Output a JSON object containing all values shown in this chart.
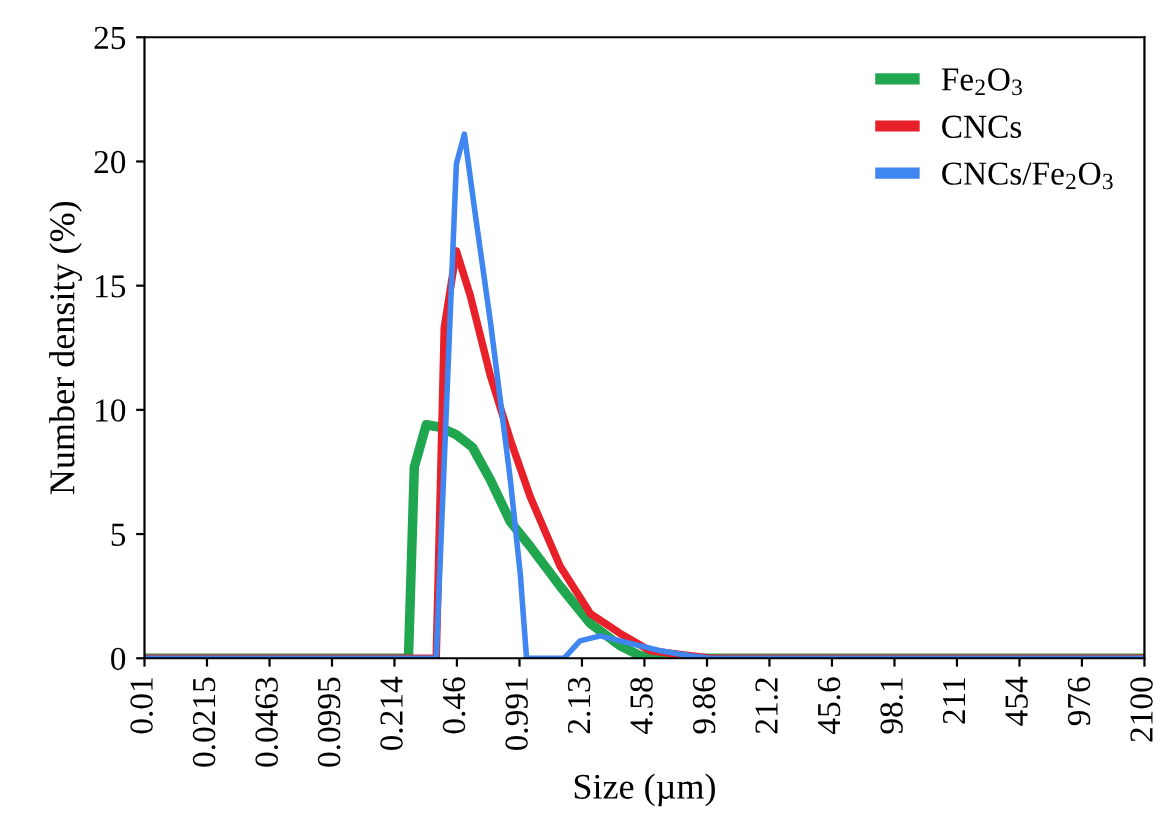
{
  "chart_data": {
    "type": "line",
    "xlabel": "Size (µm)",
    "ylabel": "Number density (%)",
    "log": "x",
    "xlim": [
      0.01,
      2100
    ],
    "xticks": [
      0.01,
      0.0215,
      0.0463,
      0.0995,
      0.214,
      0.46,
      0.991,
      2.13,
      4.58,
      9.86,
      21.2,
      45.6,
      98.1,
      211,
      454,
      976,
      2100
    ],
    "ylim": [
      0,
      25
    ],
    "yticks": [
      0,
      5,
      10,
      15,
      20,
      25
    ],
    "grid": false,
    "legend": "top right",
    "line_style": "solid",
    "marker": "none",
    "series": [
      {
        "name": "Fe$_{2}$O$_{3}$",
        "color": "#1fa64f",
        "x": [
          0.01,
          0.254,
          0.273,
          0.316,
          0.375,
          0.457,
          0.556,
          0.692,
          0.885,
          1.13,
          1.63,
          2.36,
          3.4,
          4.35,
          5.56,
          2100
        ],
        "values": [
          0,
          0,
          7.7,
          9.4,
          9.3,
          9.0,
          8.5,
          7.2,
          5.5,
          4.5,
          2.9,
          1.4,
          0.5,
          0.1,
          0,
          0
        ]
      },
      {
        "name": "CNCs",
        "color": "#e8202a",
        "x": [
          0.01,
          0.357,
          0.394,
          0.457,
          0.542,
          0.692,
          0.885,
          1.13,
          1.63,
          2.36,
          3.4,
          4.91,
          8.02,
          10.3,
          2100
        ],
        "values": [
          0,
          0,
          13.3,
          16.4,
          14.6,
          11.4,
          8.8,
          6.5,
          3.7,
          1.8,
          1.0,
          0.3,
          0.1,
          0,
          0
        ]
      },
      {
        "name": "CNCs/Fe$_{2}$O$_{3}$",
        "color": "#3f86f0",
        "x": [
          0.01,
          0.357,
          0.457,
          0.504,
          0.583,
          0.692,
          0.783,
          0.885,
          1.0,
          1.08,
          1.71,
          2.08,
          2.67,
          3.85,
          5.56,
          8.02,
          10.3,
          2100
        ],
        "values": [
          0,
          0,
          19.9,
          21.1,
          17.6,
          13.6,
          10.4,
          7.2,
          3.4,
          0,
          0,
          0.7,
          0.9,
          0.6,
          0.3,
          0.1,
          0,
          0
        ]
      }
    ]
  }
}
